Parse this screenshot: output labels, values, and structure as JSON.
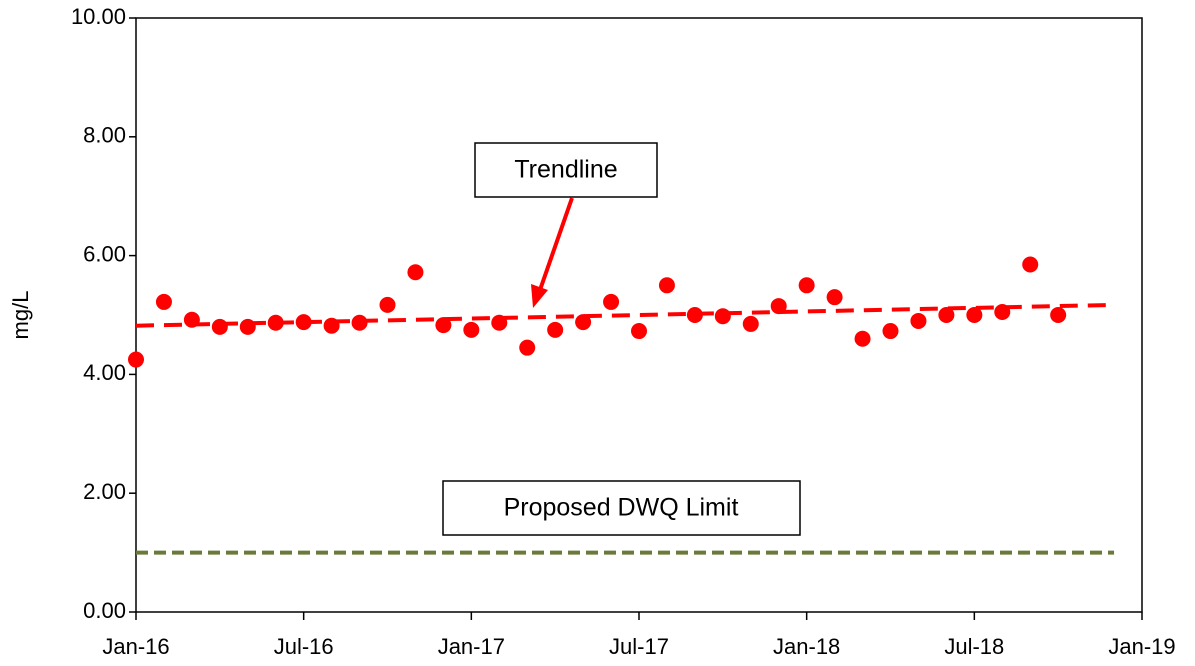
{
  "chart_data": {
    "type": "scatter",
    "y_label": "mg/L",
    "x": [
      "2016-01",
      "2016-02",
      "2016-03",
      "2016-04",
      "2016-05",
      "2016-06",
      "2016-07",
      "2016-08",
      "2016-09",
      "2016-10",
      "2016-11",
      "2016-12",
      "2017-01",
      "2017-02",
      "2017-03",
      "2017-04",
      "2017-05",
      "2017-06",
      "2017-07",
      "2017-08",
      "2017-09",
      "2017-10",
      "2017-11",
      "2017-12",
      "2018-01",
      "2018-02",
      "2018-03",
      "2018-04",
      "2018-05",
      "2018-06",
      "2018-07",
      "2018-08",
      "2018-09",
      "2018-10"
    ],
    "series": [
      {
        "color": "#ff0000",
        "values": [
          4.25,
          5.22,
          4.92,
          4.8,
          4.8,
          4.87,
          4.88,
          4.82,
          4.87,
          5.17,
          5.72,
          4.83,
          4.75,
          4.87,
          4.45,
          4.75,
          4.88,
          5.22,
          4.73,
          5.5,
          5.0,
          4.98,
          4.85,
          5.15,
          5.5,
          5.3,
          4.6,
          4.73,
          4.9,
          5.0,
          5.0,
          5.05,
          5.85,
          5.0
        ]
      }
    ],
    "trendline": {
      "label": "Trendline",
      "color": "#ff0000",
      "x": [
        "2016-01",
        "2018-12"
      ],
      "values": [
        4.82,
        5.17
      ]
    },
    "limit": {
      "label": "Proposed DWQ Limit",
      "color": "#6b7a3a",
      "x": [
        "2016-01",
        "2018-12"
      ],
      "values": [
        1.0,
        1.0
      ]
    },
    "xlim": [
      "2016-01",
      "2019-01"
    ],
    "xticks": [
      {
        "value": "2016-01",
        "label": "Jan-16"
      },
      {
        "value": "2016-07",
        "label": "Jul-16"
      },
      {
        "value": "2017-01",
        "label": "Jan-17"
      },
      {
        "value": "2017-07",
        "label": "Jul-17"
      },
      {
        "value": "2018-01",
        "label": "Jan-18"
      },
      {
        "value": "2018-07",
        "label": "Jul-18"
      },
      {
        "value": "2019-01",
        "label": "Jan-19"
      }
    ],
    "ylim": [
      0,
      10
    ],
    "yticks": [
      {
        "value": 0,
        "label": "0.00"
      },
      {
        "value": 2,
        "label": "2.00"
      },
      {
        "value": 4,
        "label": "4.00"
      },
      {
        "value": 6,
        "label": "6.00"
      },
      {
        "value": 8,
        "label": "8.00"
      },
      {
        "value": 10,
        "label": "10.00"
      }
    ],
    "grid": false
  }
}
